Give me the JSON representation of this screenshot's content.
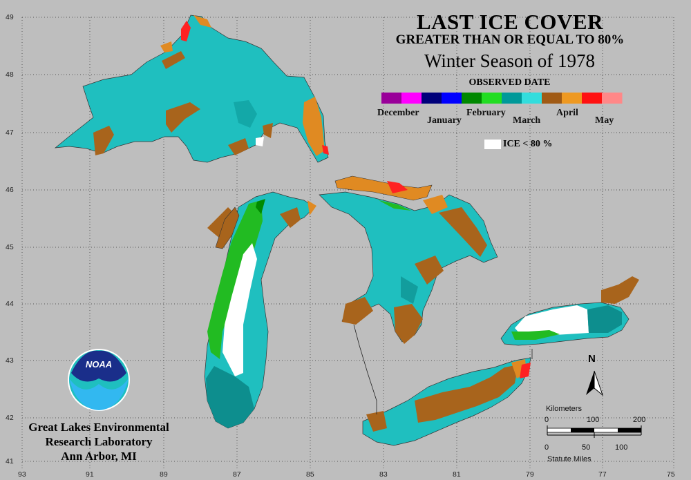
{
  "title": {
    "line1": "LAST ICE COVER",
    "line2": "GREATER THAN OR EQUAL TO 80%",
    "line3": "Winter Season of 1978",
    "legend_heading": "OBSERVED DATE"
  },
  "legend": {
    "months": [
      {
        "label": "December",
        "colors": [
          "#990099",
          "#ff00ff"
        ]
      },
      {
        "label": "January",
        "colors": [
          "#00007a",
          "#0000ff"
        ]
      },
      {
        "label": "February",
        "colors": [
          "#008800",
          "#22dd22"
        ]
      },
      {
        "label": "March",
        "colors": [
          "#009999",
          "#33dddd"
        ]
      },
      {
        "label": "April",
        "colors": [
          "#a05a14",
          "#ee9922"
        ]
      },
      {
        "label": "May",
        "colors": [
          "#ff1111",
          "#ff8888"
        ]
      }
    ],
    "ice_lt_80": "ICE < 80 %"
  },
  "axes": {
    "lat_labels": [
      "49",
      "48",
      "47",
      "46",
      "45",
      "44",
      "43",
      "42",
      "41"
    ],
    "lon_labels": [
      "93",
      "91",
      "89",
      "87",
      "85",
      "83",
      "81",
      "79",
      "77",
      "75"
    ]
  },
  "organization": {
    "line1": "Great Lakes Environmental",
    "line2": "Research Laboratory",
    "line3": "Ann Arbor, MI",
    "logo_text": "NOAA"
  },
  "scale_bar": {
    "km_label": "Kilometers",
    "km_ticks": [
      "0",
      "100",
      "200"
    ],
    "mi_ticks": [
      "0",
      "50",
      "100"
    ],
    "mi_label": "Statute Miles"
  },
  "north_label": "N"
}
